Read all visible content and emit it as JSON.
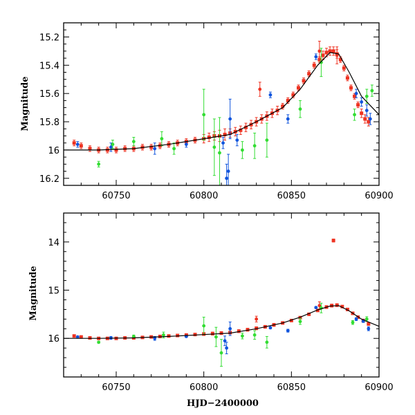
{
  "chart_data": [
    {
      "type": "scatter",
      "title": "",
      "xlabel": "",
      "ylabel": "Magnitude",
      "xlim": [
        60720,
        60900
      ],
      "ylim": [
        16.25,
        15.1
      ],
      "y_inverted": true,
      "xticks": [
        60750,
        60800,
        60850,
        60900
      ],
      "xtick_labels": [
        "60750",
        "60800",
        "60850",
        "60900"
      ],
      "yticks": [
        15.2,
        15.4,
        15.6,
        15.8,
        16.0,
        16.2
      ],
      "ytick_labels": [
        "15.2",
        "15.4",
        "15.6",
        "15.8",
        "16",
        "16.2"
      ],
      "grid": false,
      "series": [
        {
          "color": "#ee3322",
          "marker": "square",
          "x": [
            60726,
            60730,
            60735,
            60740,
            60745,
            60750,
            60755,
            60760,
            60765,
            60770,
            60775,
            60780,
            60785,
            60790,
            60795,
            60800,
            60803,
            60806,
            60809,
            60812,
            60815,
            60818,
            60821,
            60824,
            60827,
            60830,
            60833,
            60836,
            60839,
            60842,
            60845,
            60848,
            60851,
            60854,
            60857,
            60860,
            60863,
            60866,
            60868,
            60870,
            60872,
            60874,
            60876,
            60878,
            60880,
            60882,
            60884,
            60886,
            60888,
            60890,
            60892,
            60894
          ],
          "y": [
            15.95,
            15.97,
            15.99,
            16.0,
            16.0,
            16.0,
            15.99,
            15.99,
            15.98,
            15.98,
            15.97,
            15.96,
            15.95,
            15.94,
            15.93,
            15.92,
            15.91,
            15.9,
            15.9,
            15.89,
            15.88,
            15.87,
            15.86,
            15.84,
            15.82,
            15.8,
            15.78,
            15.76,
            15.74,
            15.72,
            15.69,
            15.65,
            15.61,
            15.56,
            15.51,
            15.46,
            15.4,
            15.36,
            15.33,
            15.31,
            15.3,
            15.3,
            15.32,
            15.36,
            15.42,
            15.49,
            15.56,
            15.62,
            15.68,
            15.74,
            15.78,
            15.8
          ],
          "err": [
            0.02,
            0.02,
            0.02,
            0.02,
            0.02,
            0.02,
            0.02,
            0.02,
            0.02,
            0.02,
            0.02,
            0.02,
            0.02,
            0.02,
            0.02,
            0.03,
            0.03,
            0.03,
            0.04,
            0.04,
            0.03,
            0.03,
            0.03,
            0.03,
            0.03,
            0.03,
            0.03,
            0.03,
            0.03,
            0.03,
            0.02,
            0.02,
            0.02,
            0.02,
            0.02,
            0.02,
            0.02,
            0.02,
            0.03,
            0.03,
            0.03,
            0.03,
            0.03,
            0.02,
            0.02,
            0.02,
            0.02,
            0.02,
            0.02,
            0.03,
            0.03,
            0.03
          ]
        },
        {
          "color": "#ee3322",
          "marker": "circle",
          "x": [
            60832,
            60866,
            60876
          ],
          "y": [
            15.57,
            15.3,
            15.33
          ],
          "err": [
            0.05,
            0.07,
            0.06
          ]
        },
        {
          "color": "#1155dd",
          "marker": "circle",
          "x": [
            60728,
            60747,
            60772,
            60790,
            60811,
            60813,
            60814,
            60815,
            60819,
            60838,
            60848,
            60864,
            60887,
            60890,
            60893,
            60895
          ],
          "y": [
            15.96,
            15.98,
            15.99,
            15.96,
            15.95,
            16.2,
            16.15,
            15.78,
            15.93,
            15.61,
            15.78,
            15.34,
            15.6,
            15.66,
            15.72,
            15.78
          ],
          "err": [
            0.02,
            0.03,
            0.04,
            0.02,
            0.04,
            0.1,
            0.12,
            0.14,
            0.04,
            0.02,
            0.03,
            0.02,
            0.03,
            0.03,
            0.04,
            0.04
          ]
        },
        {
          "color": "#33dd33",
          "marker": "circle",
          "x": [
            60740,
            60748,
            60760,
            60776,
            60783,
            60800,
            60806,
            60809,
            60822,
            60829,
            60836,
            60855,
            60867,
            60886,
            60893,
            60896
          ],
          "y": [
            16.1,
            15.96,
            15.94,
            15.92,
            15.99,
            15.75,
            15.98,
            16.02,
            16.0,
            15.97,
            15.93,
            15.71,
            15.38,
            15.75,
            15.62,
            15.58
          ],
          "err": [
            0.02,
            0.03,
            0.03,
            0.05,
            0.04,
            0.18,
            0.2,
            0.25,
            0.06,
            0.09,
            0.12,
            0.06,
            0.1,
            0.04,
            0.05,
            0.04
          ]
        },
        {
          "color": "#000000",
          "type": "line",
          "x": [
            60720,
            60740,
            60760,
            60780,
            60800,
            60815,
            60830,
            60845,
            60855,
            60865,
            60872,
            60877,
            60883,
            60890,
            60900
          ],
          "y": [
            16.0,
            16.0,
            15.99,
            15.96,
            15.92,
            15.89,
            15.8,
            15.7,
            15.57,
            15.4,
            15.31,
            15.32,
            15.45,
            15.62,
            15.75
          ]
        }
      ]
    },
    {
      "type": "scatter",
      "title": "",
      "xlabel": "HJD−2400000",
      "ylabel": "Magnitude",
      "xlim": [
        60720,
        60900
      ],
      "ylim": [
        16.8,
        13.4
      ],
      "y_inverted": true,
      "xticks": [
        60750,
        60800,
        60850,
        60900
      ],
      "xtick_labels": [
        "60750",
        "60800",
        "60850",
        "60900"
      ],
      "yticks": [
        14,
        15,
        16
      ],
      "ytick_labels": [
        "14",
        "15",
        "16"
      ],
      "grid": false,
      "series": [
        {
          "color": "#ee3322",
          "marker": "square",
          "x": [
            60726,
            60730,
            60735,
            60740,
            60745,
            60750,
            60755,
            60760,
            60765,
            60770,
            60775,
            60780,
            60785,
            60790,
            60795,
            60800,
            60805,
            60810,
            60815,
            60820,
            60825,
            60830,
            60835,
            60840,
            60845,
            60850,
            60855,
            60860,
            60865,
            60870,
            60873,
            60876,
            60879,
            60882,
            60885,
            60888,
            60891,
            60894,
            60874
          ],
          "y": [
            15.95,
            15.97,
            15.99,
            16.0,
            16.0,
            16.0,
            15.99,
            15.99,
            15.98,
            15.97,
            15.96,
            15.95,
            15.94,
            15.93,
            15.92,
            15.91,
            15.9,
            15.89,
            15.88,
            15.85,
            15.82,
            15.79,
            15.76,
            15.72,
            15.68,
            15.63,
            15.57,
            15.5,
            15.42,
            15.35,
            15.32,
            15.31,
            15.34,
            15.4,
            15.48,
            15.56,
            15.63,
            15.7,
            13.97
          ],
          "err": [
            0.02,
            0.02,
            0.02,
            0.02,
            0.02,
            0.02,
            0.02,
            0.02,
            0.02,
            0.02,
            0.02,
            0.02,
            0.02,
            0.02,
            0.02,
            0.03,
            0.03,
            0.03,
            0.03,
            0.03,
            0.03,
            0.03,
            0.03,
            0.03,
            0.02,
            0.02,
            0.02,
            0.02,
            0.02,
            0.03,
            0.03,
            0.03,
            0.02,
            0.02,
            0.02,
            0.02,
            0.03,
            0.03,
            0.03
          ]
        },
        {
          "color": "#ee3322",
          "marker": "circle",
          "x": [
            60830,
            60866
          ],
          "y": [
            15.6,
            15.32
          ],
          "err": [
            0.06,
            0.08
          ]
        },
        {
          "color": "#1155dd",
          "marker": "circle",
          "x": [
            60728,
            60747,
            60772,
            60790,
            60812,
            60813,
            60815,
            60838,
            60848,
            60864,
            60887,
            60891,
            60894
          ],
          "y": [
            15.97,
            15.99,
            16.0,
            15.96,
            16.05,
            16.2,
            15.8,
            15.78,
            15.84,
            15.36,
            15.6,
            15.64,
            15.8
          ],
          "err": [
            0.02,
            0.03,
            0.04,
            0.02,
            0.1,
            0.12,
            0.14,
            0.02,
            0.03,
            0.02,
            0.03,
            0.03,
            0.04
          ]
        },
        {
          "color": "#33dd33",
          "marker": "circle",
          "x": [
            60740,
            60760,
            60777,
            60800,
            60807,
            60810,
            60822,
            60829,
            60836,
            60855,
            60867,
            60885,
            60893
          ],
          "y": [
            16.08,
            15.96,
            15.93,
            15.74,
            15.97,
            16.3,
            15.95,
            15.93,
            16.08,
            15.65,
            15.37,
            15.67,
            15.6
          ],
          "err": [
            0.02,
            0.03,
            0.06,
            0.18,
            0.2,
            0.28,
            0.06,
            0.09,
            0.12,
            0.06,
            0.1,
            0.04,
            0.05
          ]
        },
        {
          "color": "#000000",
          "type": "line",
          "x": [
            60720,
            60740,
            60760,
            60780,
            60800,
            60815,
            60830,
            60845,
            60855,
            60865,
            60872,
            60877,
            60883,
            60890,
            60900
          ],
          "y": [
            16.0,
            16.0,
            15.99,
            15.96,
            15.92,
            15.89,
            15.8,
            15.68,
            15.56,
            15.41,
            15.33,
            15.32,
            15.43,
            15.6,
            15.75
          ]
        }
      ]
    }
  ]
}
